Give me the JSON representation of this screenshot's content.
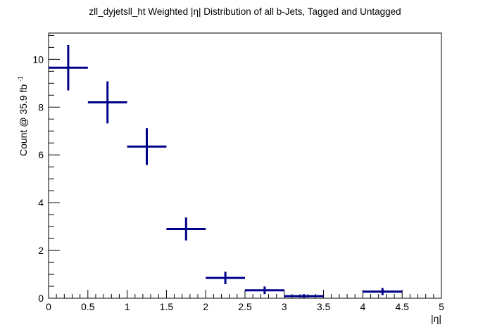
{
  "chart_data": {
    "type": "scatter",
    "title": "zll_dyjetsll_ht Weighted |η| Distribution of all b-Jets, Tagged and Untagged",
    "xlabel": "|η|",
    "ylabel": "Count @ 35.9 fb",
    "ylabel_superscript": "-1",
    "xlim": [
      0,
      5
    ],
    "ylim": [
      0,
      11.1
    ],
    "x_ticks": [
      "0",
      "0.5",
      "1",
      "1.5",
      "2",
      "2.5",
      "3",
      "3.5",
      "4",
      "4.5",
      "5"
    ],
    "y_ticks": [
      "0",
      "2",
      "4",
      "6",
      "8",
      "10"
    ],
    "grid": false,
    "legend": "none",
    "marker_color": "#00008b",
    "points": [
      {
        "x": 0.25,
        "xerr": 0.25,
        "y": 9.65,
        "yerr": 0.95
      },
      {
        "x": 0.75,
        "xerr": 0.25,
        "y": 8.2,
        "yerr": 0.88
      },
      {
        "x": 1.25,
        "xerr": 0.25,
        "y": 6.35,
        "yerr": 0.77
      },
      {
        "x": 1.75,
        "xerr": 0.25,
        "y": 2.9,
        "yerr": 0.48
      },
      {
        "x": 2.25,
        "xerr": 0.25,
        "y": 0.85,
        "yerr": 0.26
      },
      {
        "x": 2.75,
        "xerr": 0.25,
        "y": 0.33,
        "yerr": 0.16
      },
      {
        "x": 3.25,
        "xerr": 0.25,
        "y": 0.09,
        "yerr": 0.08
      },
      {
        "x": 4.25,
        "xerr": 0.25,
        "y": 0.28,
        "yerr": 0.15
      }
    ]
  }
}
